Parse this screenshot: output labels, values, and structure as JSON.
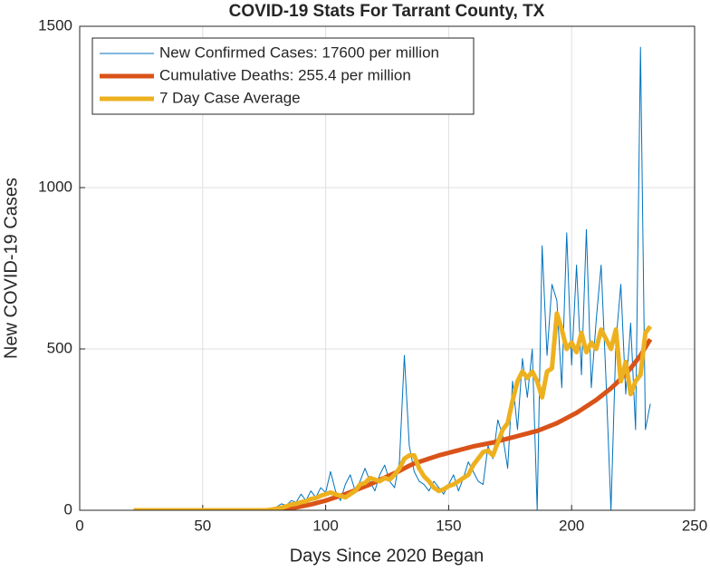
{
  "chart_data": {
    "type": "line",
    "title": "COVID-19 Stats For Tarrant County, TX",
    "xlabel": "Days Since 2020 Began",
    "ylabel": "New COVID-19 Cases",
    "xlim": [
      0,
      250
    ],
    "xticks": [
      0,
      50,
      100,
      150,
      200,
      250
    ],
    "ylim": [
      0,
      1500
    ],
    "yticks": [
      0,
      500,
      1000,
      1500
    ],
    "grid": true,
    "legend": "upper left",
    "x": [
      22,
      24,
      26,
      28,
      30,
      32,
      34,
      36,
      38,
      40,
      42,
      44,
      46,
      48,
      50,
      52,
      54,
      56,
      58,
      60,
      62,
      64,
      66,
      68,
      70,
      72,
      74,
      76,
      78,
      80,
      82,
      84,
      86,
      88,
      90,
      92,
      94,
      96,
      98,
      100,
      102,
      104,
      106,
      108,
      110,
      112,
      114,
      116,
      118,
      120,
      122,
      124,
      126,
      128,
      130,
      132,
      134,
      136,
      138,
      140,
      142,
      144,
      146,
      148,
      150,
      152,
      154,
      156,
      158,
      160,
      162,
      164,
      166,
      168,
      170,
      172,
      174,
      176,
      178,
      180,
      182,
      184,
      186,
      188,
      190,
      192,
      194,
      196,
      198,
      200,
      202,
      204,
      206,
      208,
      210,
      212,
      214,
      216,
      218,
      220,
      222,
      224,
      226,
      228,
      230,
      232
    ],
    "series": [
      {
        "name": "New Confirmed Cases: 17600 per million",
        "color": "#0072bd",
        "width": 1,
        "values": [
          0,
          0,
          0,
          0,
          0,
          0,
          0,
          0,
          0,
          0,
          0,
          0,
          0,
          0,
          0,
          0,
          0,
          0,
          0,
          0,
          0,
          0,
          0,
          0,
          0,
          0,
          0,
          0,
          5,
          10,
          20,
          15,
          30,
          25,
          50,
          30,
          60,
          40,
          70,
          55,
          120,
          60,
          30,
          80,
          110,
          60,
          90,
          130,
          90,
          60,
          110,
          140,
          90,
          70,
          150,
          480,
          200,
          120,
          90,
          80,
          60,
          90,
          70,
          50,
          80,
          110,
          60,
          100,
          150,
          120,
          90,
          80,
          200,
          160,
          280,
          230,
          130,
          400,
          250,
          470,
          350,
          500,
          0,
          820,
          480,
          700,
          650,
          380,
          860,
          450,
          760,
          420,
          870,
          380,
          590,
          760,
          400,
          0,
          520,
          700,
          360,
          580,
          250,
          1435,
          250,
          330
        ]
      },
      {
        "name": "Cumulative Deaths: 255.4 per million",
        "color": "#d95319",
        "width": 5,
        "values": [
          0,
          0,
          0,
          0,
          0,
          0,
          0,
          0,
          0,
          0,
          0,
          0,
          0,
          0,
          0,
          0,
          0,
          0,
          0,
          0,
          0,
          0,
          0,
          0,
          0,
          0,
          0,
          0,
          0,
          0,
          2,
          4,
          6,
          9,
          12,
          15,
          18,
          22,
          26,
          30,
          35,
          40,
          45,
          50,
          56,
          62,
          68,
          74,
          80,
          87,
          94,
          101,
          108,
          115,
          122,
          130,
          138,
          145,
          150,
          155,
          160,
          165,
          170,
          174,
          178,
          182,
          186,
          190,
          194,
          198,
          201,
          204,
          207,
          210,
          214,
          218,
          222,
          226,
          230,
          234,
          238,
          242,
          246,
          252,
          258,
          264,
          270,
          278,
          286,
          294,
          302,
          312,
          322,
          332,
          342,
          354,
          366,
          378,
          392,
          408,
          424,
          440,
          460,
          480,
          505,
          530
        ]
      },
      {
        "name": "7 Day Case Average",
        "color": "#edb120",
        "width": 5,
        "values": [
          0,
          0,
          0,
          0,
          0,
          0,
          0,
          0,
          0,
          0,
          0,
          0,
          0,
          0,
          0,
          0,
          0,
          0,
          0,
          0,
          0,
          0,
          0,
          0,
          0,
          0,
          0,
          0,
          2,
          5,
          8,
          12,
          18,
          20,
          25,
          28,
          35,
          38,
          45,
          50,
          55,
          50,
          45,
          40,
          50,
          60,
          80,
          85,
          100,
          95,
          90,
          100,
          95,
          110,
          130,
          160,
          170,
          170,
          130,
          105,
          90,
          70,
          60,
          65,
          75,
          80,
          90,
          100,
          110,
          140,
          160,
          180,
          185,
          170,
          210,
          250,
          270,
          340,
          400,
          430,
          410,
          430,
          400,
          350,
          430,
          440,
          610,
          560,
          500,
          520,
          490,
          550,
          490,
          520,
          500,
          560,
          530,
          500,
          560,
          400,
          460,
          360,
          400,
          420,
          550,
          570
        ]
      }
    ]
  }
}
